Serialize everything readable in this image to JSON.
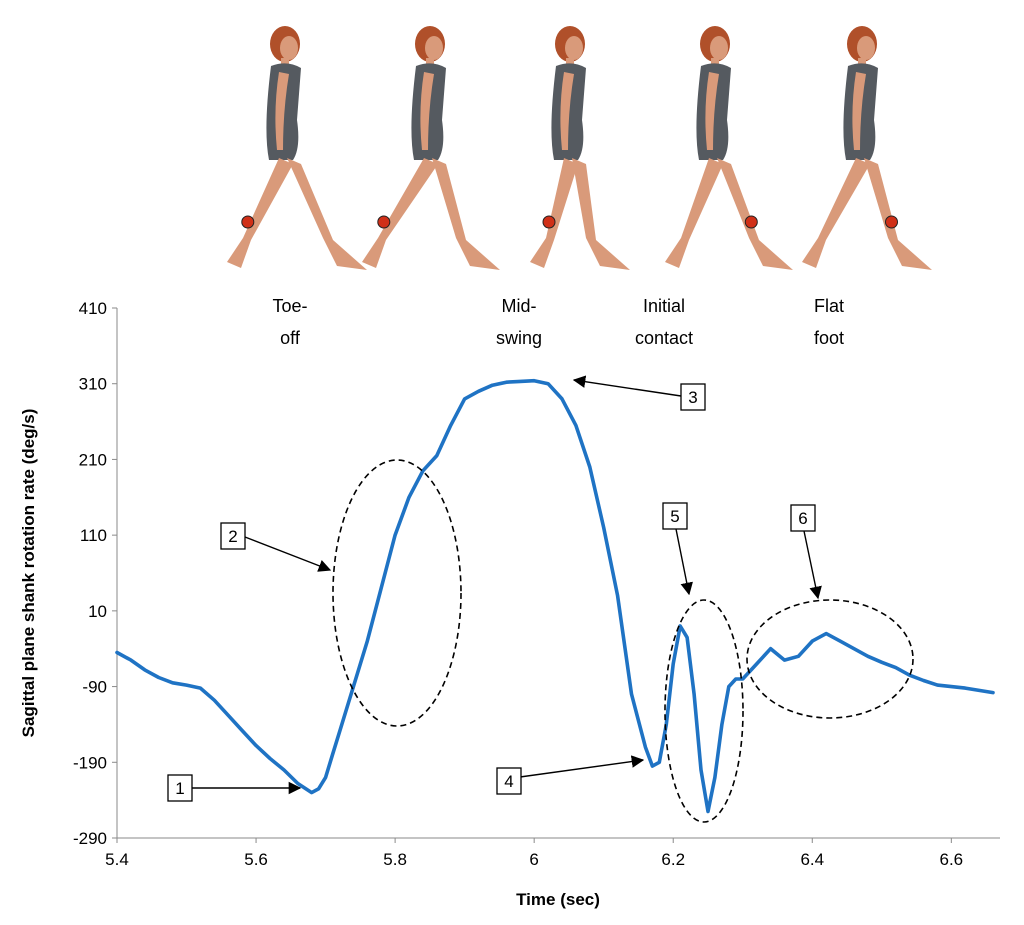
{
  "figure": {
    "phases": [
      {
        "id": "toe-off",
        "lines": [
          "Toe-",
          "off"
        ],
        "x": 5.72
      },
      {
        "id": "mid-swing",
        "lines": [
          "Mid-",
          "swing"
        ],
        "x": 6.0
      },
      {
        "id": "initial-contact",
        "lines": [
          "Initial",
          "contact"
        ],
        "x": 6.18
      },
      {
        "id": "flat-foot",
        "lines": [
          "Flat",
          "foot"
        ],
        "x": 6.355
      }
    ],
    "walker_colors": {
      "skin": "#d99a7a",
      "outfit": "#555a60",
      "hair": "#b0502a",
      "sensor": "#d03018"
    }
  },
  "chart_data": {
    "type": "line",
    "title": "",
    "xlabel": "Time (sec)",
    "ylabel": "Sagittal plane shank rotation rate (deg/s)",
    "xlim": [
      5.4,
      6.67
    ],
    "ylim": [
      -290,
      410
    ],
    "xticks": [
      5.4,
      5.6,
      5.8,
      6,
      6.2,
      6.4,
      6.6
    ],
    "xtick_labels": [
      "5.4",
      "5.6",
      "5.8",
      "6",
      "6.2",
      "6.4",
      "6.6"
    ],
    "yticks": [
      -290,
      -190,
      -90,
      10,
      110,
      210,
      310,
      410
    ],
    "ytick_labels": [
      "-290",
      "-190",
      "-90",
      "10",
      "110",
      "210",
      "310",
      "410"
    ],
    "grid": false,
    "legend": "none",
    "line_color": "#1f73c4",
    "series": [
      {
        "x": [
          5.4,
          5.42,
          5.44,
          5.46,
          5.48,
          5.5,
          5.52,
          5.54,
          5.56,
          5.58,
          5.6,
          5.62,
          5.64,
          5.66,
          5.68,
          5.69,
          5.7,
          5.71,
          5.72,
          5.74,
          5.76,
          5.78,
          5.8,
          5.82,
          5.84,
          5.86,
          5.88,
          5.9,
          5.92,
          5.94,
          5.96,
          5.98,
          6.0,
          6.02,
          6.04,
          6.06,
          6.08,
          6.1,
          6.12,
          6.14,
          6.16,
          6.17,
          6.18,
          6.19,
          6.2,
          6.21,
          6.22,
          6.23,
          6.24,
          6.25,
          6.26,
          6.27,
          6.28,
          6.29,
          6.3,
          6.32,
          6.34,
          6.36,
          6.38,
          6.4,
          6.42,
          6.44,
          6.46,
          6.48,
          6.5,
          6.52,
          6.54,
          6.56,
          6.58,
          6.6,
          6.62,
          6.64,
          6.66
        ],
        "y": [
          -45,
          -55,
          -68,
          -78,
          -85,
          -88,
          -92,
          -108,
          -128,
          -148,
          -168,
          -185,
          -200,
          -218,
          -230,
          -225,
          -210,
          -180,
          -150,
          -90,
          -30,
          40,
          110,
          160,
          195,
          215,
          255,
          290,
          300,
          308,
          312,
          313,
          314,
          310,
          290,
          255,
          200,
          120,
          30,
          -100,
          -170,
          -195,
          -190,
          -140,
          -60,
          -10,
          -25,
          -100,
          -200,
          -255,
          -210,
          -140,
          -90,
          -80,
          -80,
          -60,
          -40,
          -55,
          -50,
          -30,
          -20,
          -30,
          -40,
          -50,
          -58,
          -65,
          -75,
          -82,
          -88,
          -90,
          -92,
          -95,
          -98
        ]
      }
    ],
    "annotations": [
      {
        "label": "1",
        "x": 5.69,
        "y": -225
      },
      {
        "label": "2",
        "x": 5.81,
        "y": 40
      },
      {
        "label": "3",
        "x": 6.01,
        "y": 312
      },
      {
        "label": "4",
        "x": 6.17,
        "y": -192
      },
      {
        "label": "5",
        "x": 6.24,
        "y": -60
      },
      {
        "label": "6",
        "x": 6.42,
        "y": -40
      }
    ]
  }
}
